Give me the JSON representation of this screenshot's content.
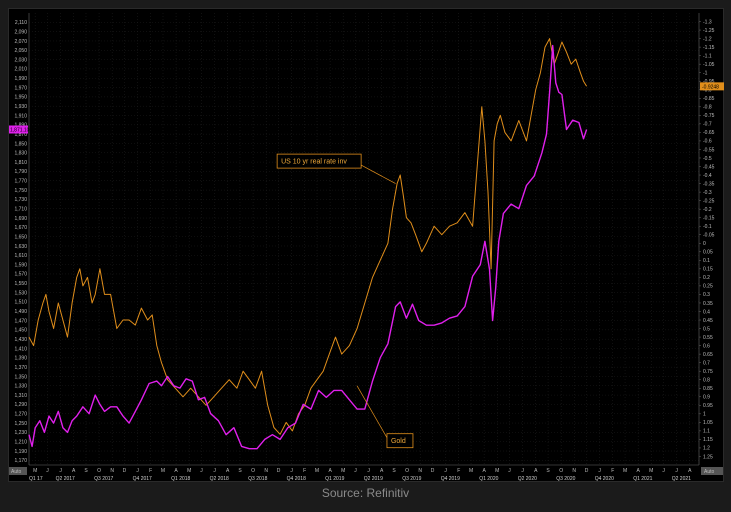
{
  "source": "Source: Refinitiv",
  "chart_data": {
    "type": "line",
    "ylim_left": [
      1160,
      2130
    ],
    "left_ticks": [
      1170,
      1190,
      1210,
      1230,
      1250,
      1270,
      1290,
      1310,
      1330,
      1350,
      1370,
      1390,
      1410,
      1430,
      1450,
      1470,
      1490,
      1510,
      1530,
      1550,
      1570,
      1590,
      1610,
      1630,
      1650,
      1670,
      1690,
      1710,
      1730,
      1750,
      1770,
      1790,
      1810,
      1830,
      1850,
      1870,
      1890,
      1910,
      1930,
      1950,
      1970,
      1990,
      2010,
      2030,
      2050,
      2070,
      2090,
      2110
    ],
    "left_tick_labels": [
      "1,170",
      "1,190",
      "1,210",
      "1,230",
      "1,250",
      "1,270",
      "1,290",
      "1,310",
      "1,330",
      "1,350",
      "1,370",
      "1,390",
      "1,410",
      "1,430",
      "1,450",
      "1,470",
      "1,490",
      "1,510",
      "1,530",
      "1,550",
      "1,570",
      "1,590",
      "1,610",
      "1,630",
      "1,650",
      "1,670",
      "1,690",
      "1,710",
      "1,730",
      "1,750",
      "1,770",
      "1,790",
      "1,810",
      "1,830",
      "1,850",
      "1,870",
      "1,890",
      "1,910",
      "1,930",
      "1,950",
      "1,970",
      "1,990",
      "2,010",
      "2,030",
      "2,050",
      "2,070",
      "2,090",
      "2,110"
    ],
    "ylim_right": [
      1.3,
      -1.35
    ],
    "right_ticks": [
      1.25,
      1.2,
      1.15,
      1.1,
      1.05,
      1,
      0.95,
      0.9,
      0.85,
      0.8,
      0.75,
      0.7,
      0.65,
      0.6,
      0.55,
      0.5,
      0.45,
      0.4,
      0.35,
      0.3,
      0.25,
      0.2,
      0.15,
      0.1,
      0.05,
      0,
      -0.05,
      -0.1,
      -0.15,
      -0.2,
      -0.25,
      -0.3,
      -0.35,
      -0.4,
      -0.45,
      -0.5,
      -0.55,
      -0.6,
      -0.65,
      -0.7,
      -0.75,
      -0.8,
      -0.85,
      -0.9,
      -0.95,
      -1,
      -1.05,
      -1.1,
      -1.15,
      -1.2,
      -1.25,
      -1.3
    ],
    "right_tick_labels": [
      "1.25",
      "1.2",
      "1.15",
      "1.1",
      "1.05",
      "1",
      "0.95",
      "0.9",
      "0.85",
      "0.8",
      "0.75",
      "0.7",
      "0.65",
      "0.6",
      "0.55",
      "0.5",
      "0.45",
      "0.4",
      "0.35",
      "0.3",
      "0.25",
      "0.2",
      "0.15",
      "0.1",
      "0.05",
      "0",
      "-0.05",
      "-0.1",
      "-0.15",
      "-0.2",
      "-0.25",
      "-0.3",
      "-0.35",
      "-0.4",
      "-0.45",
      "-0.5",
      "-0.55",
      "-0.6",
      "-0.65",
      "-0.7",
      "-0.75",
      "-0.8",
      "-0.85",
      "-0.9",
      "-0.95",
      "-1",
      "-1.05",
      "-1.1",
      "-1.15",
      "-1.2",
      "-1.25",
      "-1.3"
    ],
    "xlim": [
      2017.17,
      2021.52
    ],
    "month_ticks": [
      {
        "x": 2017.21,
        "label": "M"
      },
      {
        "x": 2017.29,
        "label": "J"
      },
      {
        "x": 2017.375,
        "label": "J"
      },
      {
        "x": 2017.46,
        "label": "A"
      },
      {
        "x": 2017.54,
        "label": "S"
      },
      {
        "x": 2017.625,
        "label": "O"
      },
      {
        "x": 2017.71,
        "label": "N"
      },
      {
        "x": 2017.79,
        "label": "D"
      },
      {
        "x": 2017.875,
        "label": "J"
      },
      {
        "x": 2017.96,
        "label": "F"
      },
      {
        "x": 2018.04,
        "label": "M"
      },
      {
        "x": 2018.125,
        "label": "A"
      },
      {
        "x": 2018.21,
        "label": "M"
      },
      {
        "x": 2018.29,
        "label": "J"
      },
      {
        "x": 2018.375,
        "label": "J"
      },
      {
        "x": 2018.46,
        "label": "A"
      },
      {
        "x": 2018.54,
        "label": "S"
      },
      {
        "x": 2018.625,
        "label": "O"
      },
      {
        "x": 2018.71,
        "label": "N"
      },
      {
        "x": 2018.79,
        "label": "D"
      },
      {
        "x": 2018.875,
        "label": "J"
      },
      {
        "x": 2018.96,
        "label": "F"
      },
      {
        "x": 2019.04,
        "label": "M"
      },
      {
        "x": 2019.125,
        "label": "A"
      },
      {
        "x": 2019.21,
        "label": "M"
      },
      {
        "x": 2019.29,
        "label": "J"
      },
      {
        "x": 2019.375,
        "label": "J"
      },
      {
        "x": 2019.46,
        "label": "A"
      },
      {
        "x": 2019.54,
        "label": "S"
      },
      {
        "x": 2019.625,
        "label": "O"
      },
      {
        "x": 2019.71,
        "label": "N"
      },
      {
        "x": 2019.79,
        "label": "D"
      },
      {
        "x": 2019.875,
        "label": "J"
      },
      {
        "x": 2019.96,
        "label": "F"
      },
      {
        "x": 2020.04,
        "label": "M"
      },
      {
        "x": 2020.125,
        "label": "A"
      },
      {
        "x": 2020.21,
        "label": "M"
      },
      {
        "x": 2020.29,
        "label": "J"
      },
      {
        "x": 2020.375,
        "label": "J"
      },
      {
        "x": 2020.46,
        "label": "A"
      },
      {
        "x": 2020.54,
        "label": "S"
      },
      {
        "x": 2020.625,
        "label": "O"
      },
      {
        "x": 2020.71,
        "label": "N"
      },
      {
        "x": 2020.79,
        "label": "D"
      },
      {
        "x": 2020.875,
        "label": "J"
      },
      {
        "x": 2020.96,
        "label": "F"
      },
      {
        "x": 2021.04,
        "label": "M"
      },
      {
        "x": 2021.125,
        "label": "A"
      },
      {
        "x": 2021.21,
        "label": "M"
      },
      {
        "x": 2021.29,
        "label": "J"
      },
      {
        "x": 2021.375,
        "label": "J"
      },
      {
        "x": 2021.46,
        "label": "A"
      }
    ],
    "quarter_ticks": [
      {
        "x": 2017.17,
        "label": "Q1 17"
      },
      {
        "x": 2017.33,
        "label": "Q2 2017"
      },
      {
        "x": 2017.58,
        "label": "Q3 2017"
      },
      {
        "x": 2017.83,
        "label": "Q4 2017"
      },
      {
        "x": 2018.08,
        "label": "Q1 2018"
      },
      {
        "x": 2018.33,
        "label": "Q2 2018"
      },
      {
        "x": 2018.58,
        "label": "Q3 2018"
      },
      {
        "x": 2018.83,
        "label": "Q4 2018"
      },
      {
        "x": 2019.08,
        "label": "Q1 2019"
      },
      {
        "x": 2019.33,
        "label": "Q2 2019"
      },
      {
        "x": 2019.58,
        "label": "Q3 2019"
      },
      {
        "x": 2019.83,
        "label": "Q4 2019"
      },
      {
        "x": 2020.08,
        "label": "Q1 2020"
      },
      {
        "x": 2020.33,
        "label": "Q2 2020"
      },
      {
        "x": 2020.58,
        "label": "Q3 2020"
      },
      {
        "x": 2020.83,
        "label": "Q4 2020"
      },
      {
        "x": 2021.08,
        "label": "Q1 2021"
      },
      {
        "x": 2021.33,
        "label": "Q2 2021"
      }
    ],
    "axis_corner_labels": {
      "left": "Auto",
      "right": "Auto"
    },
    "grid": true,
    "series": [
      {
        "name": "US 10 yr real rate inv",
        "axis": "right",
        "color": "#e08e1b",
        "last_value_label": "-0.9248",
        "x": [
          2017.17,
          2017.2,
          2017.23,
          2017.26,
          2017.28,
          2017.3,
          2017.33,
          2017.36,
          2017.39,
          2017.42,
          2017.45,
          2017.48,
          2017.5,
          2017.52,
          2017.55,
          2017.58,
          2017.6,
          2017.63,
          2017.66,
          2017.7,
          2017.74,
          2017.78,
          2017.82,
          2017.86,
          2017.9,
          2017.94,
          2017.97,
          2018.0,
          2018.03,
          2018.07,
          2018.12,
          2018.17,
          2018.22,
          2018.27,
          2018.32,
          2018.37,
          2018.42,
          2018.47,
          2018.52,
          2018.56,
          2018.6,
          2018.64,
          2018.68,
          2018.72,
          2018.76,
          2018.8,
          2018.84,
          2018.88,
          2018.92,
          2018.96,
          2019.0,
          2019.04,
          2019.08,
          2019.12,
          2019.16,
          2019.2,
          2019.25,
          2019.3,
          2019.35,
          2019.4,
          2019.45,
          2019.5,
          2019.53,
          2019.56,
          2019.58,
          2019.6,
          2019.62,
          2019.65,
          2019.68,
          2019.72,
          2019.75,
          2019.8,
          2019.85,
          2019.9,
          2019.95,
          2020.0,
          2020.05,
          2020.08,
          2020.11,
          2020.13,
          2020.15,
          2020.17,
          2020.19,
          2020.21,
          2020.23,
          2020.26,
          2020.3,
          2020.35,
          2020.4,
          2020.43,
          2020.46,
          2020.49,
          2020.52,
          2020.55,
          2020.58,
          2020.6,
          2020.63,
          2020.66,
          2020.69,
          2020.72,
          2020.75,
          2020.77,
          2020.79
        ],
        "y": [
          0.55,
          0.6,
          0.45,
          0.35,
          0.3,
          0.4,
          0.5,
          0.35,
          0.45,
          0.55,
          0.35,
          0.2,
          0.15,
          0.25,
          0.2,
          0.35,
          0.3,
          0.15,
          0.3,
          0.3,
          0.5,
          0.45,
          0.45,
          0.48,
          0.38,
          0.45,
          0.42,
          0.6,
          0.7,
          0.8,
          0.85,
          0.9,
          0.85,
          0.9,
          0.95,
          0.9,
          0.85,
          0.8,
          0.85,
          0.75,
          0.8,
          0.85,
          0.75,
          0.95,
          1.08,
          1.12,
          1.05,
          1.1,
          1.0,
          0.95,
          0.85,
          0.8,
          0.75,
          0.65,
          0.55,
          0.65,
          0.6,
          0.5,
          0.35,
          0.2,
          0.1,
          0.0,
          -0.2,
          -0.35,
          -0.4,
          -0.28,
          -0.15,
          -0.12,
          -0.05,
          0.05,
          0.0,
          -0.1,
          -0.05,
          -0.1,
          -0.12,
          -0.18,
          -0.1,
          -0.45,
          -0.8,
          -0.6,
          -0.3,
          0.15,
          -0.6,
          -0.7,
          -0.75,
          -0.65,
          -0.6,
          -0.72,
          -0.6,
          -0.75,
          -0.9,
          -1.0,
          -1.15,
          -1.2,
          -1.05,
          -1.1,
          -1.18,
          -1.12,
          -1.05,
          -1.08,
          -1.0,
          -0.95,
          -0.92
        ]
      },
      {
        "name": "Gold",
        "axis": "left",
        "color": "#e020ec",
        "last_value_label": "1,871.10",
        "x": [
          2017.17,
          2017.19,
          2017.21,
          2017.24,
          2017.27,
          2017.3,
          2017.33,
          2017.36,
          2017.39,
          2017.42,
          2017.45,
          2017.48,
          2017.52,
          2017.56,
          2017.6,
          2017.63,
          2017.66,
          2017.7,
          2017.74,
          2017.78,
          2017.82,
          2017.86,
          2017.9,
          2017.95,
          2018.0,
          2018.03,
          2018.07,
          2018.11,
          2018.15,
          2018.19,
          2018.23,
          2018.27,
          2018.31,
          2018.35,
          2018.4,
          2018.45,
          2018.5,
          2018.55,
          2018.6,
          2018.65,
          2018.7,
          2018.75,
          2018.8,
          2018.85,
          2018.9,
          2018.95,
          2019.0,
          2019.05,
          2019.1,
          2019.15,
          2019.2,
          2019.25,
          2019.3,
          2019.35,
          2019.4,
          2019.45,
          2019.5,
          2019.55,
          2019.58,
          2019.62,
          2019.66,
          2019.7,
          2019.75,
          2019.8,
          2019.85,
          2019.9,
          2019.95,
          2020.0,
          2020.05,
          2020.1,
          2020.13,
          2020.16,
          2020.18,
          2020.2,
          2020.22,
          2020.25,
          2020.3,
          2020.35,
          2020.4,
          2020.45,
          2020.5,
          2020.53,
          2020.55,
          2020.57,
          2020.59,
          2020.61,
          2020.63,
          2020.66,
          2020.7,
          2020.74,
          2020.77,
          2020.79
        ],
        "y": [
          1225,
          1200,
          1240,
          1255,
          1230,
          1265,
          1250,
          1275,
          1240,
          1230,
          1255,
          1265,
          1285,
          1270,
          1310,
          1290,
          1275,
          1285,
          1285,
          1265,
          1250,
          1275,
          1300,
          1335,
          1340,
          1330,
          1350,
          1330,
          1325,
          1345,
          1340,
          1300,
          1305,
          1270,
          1255,
          1225,
          1240,
          1200,
          1195,
          1195,
          1215,
          1225,
          1215,
          1240,
          1250,
          1290,
          1280,
          1320,
          1305,
          1320,
          1320,
          1300,
          1280,
          1280,
          1340,
          1390,
          1420,
          1500,
          1510,
          1475,
          1505,
          1470,
          1460,
          1460,
          1465,
          1475,
          1480,
          1500,
          1565,
          1590,
          1640,
          1580,
          1470,
          1540,
          1640,
          1700,
          1720,
          1710,
          1760,
          1780,
          1830,
          1870,
          1960,
          2060,
          1980,
          1960,
          1955,
          1880,
          1900,
          1895,
          1860,
          1880
        ]
      }
    ],
    "annotations": [
      {
        "text": "US 10 yr real rate inv",
        "x": 2018.82,
        "y_left": 1810
      },
      {
        "text": "Gold",
        "x": 2019.52,
        "y_left": 1210
      }
    ]
  }
}
